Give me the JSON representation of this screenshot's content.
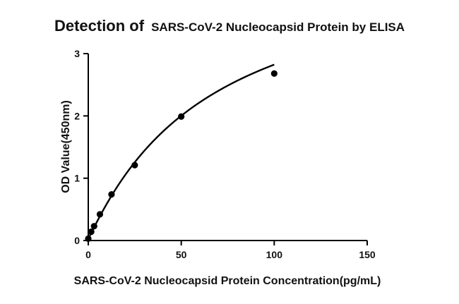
{
  "chart_data": {
    "type": "scatter",
    "title_prefix": "Detection of",
    "title_main": "SARS-CoV-2 Nucleocapsid Protein by ELISA",
    "xlabel": "SARS-CoV-2 Nucleocapsid Protein Concentration(pg/mL)",
    "ylabel": "OD Value(450nm)",
    "xlim": [
      0,
      150
    ],
    "ylim": [
      0,
      3
    ],
    "xticks": [
      0,
      50,
      100,
      150
    ],
    "yticks": [
      0,
      1,
      2,
      3
    ],
    "grid": false,
    "series": [
      {
        "x": [
          0,
          1.56,
          3.13,
          6.25,
          12.5,
          25,
          50,
          100
        ],
        "y": [
          0.03,
          0.14,
          0.23,
          0.42,
          0.74,
          1.21,
          1.99,
          2.68
        ]
      }
    ],
    "fit_curve": {
      "type": "four-parameter-logistic",
      "params": {
        "a": 0.03,
        "b": 1.05,
        "c": 65,
        "d": 4.6
      }
    },
    "colors": {
      "ink": "#000000",
      "background": "#ffffff"
    }
  }
}
